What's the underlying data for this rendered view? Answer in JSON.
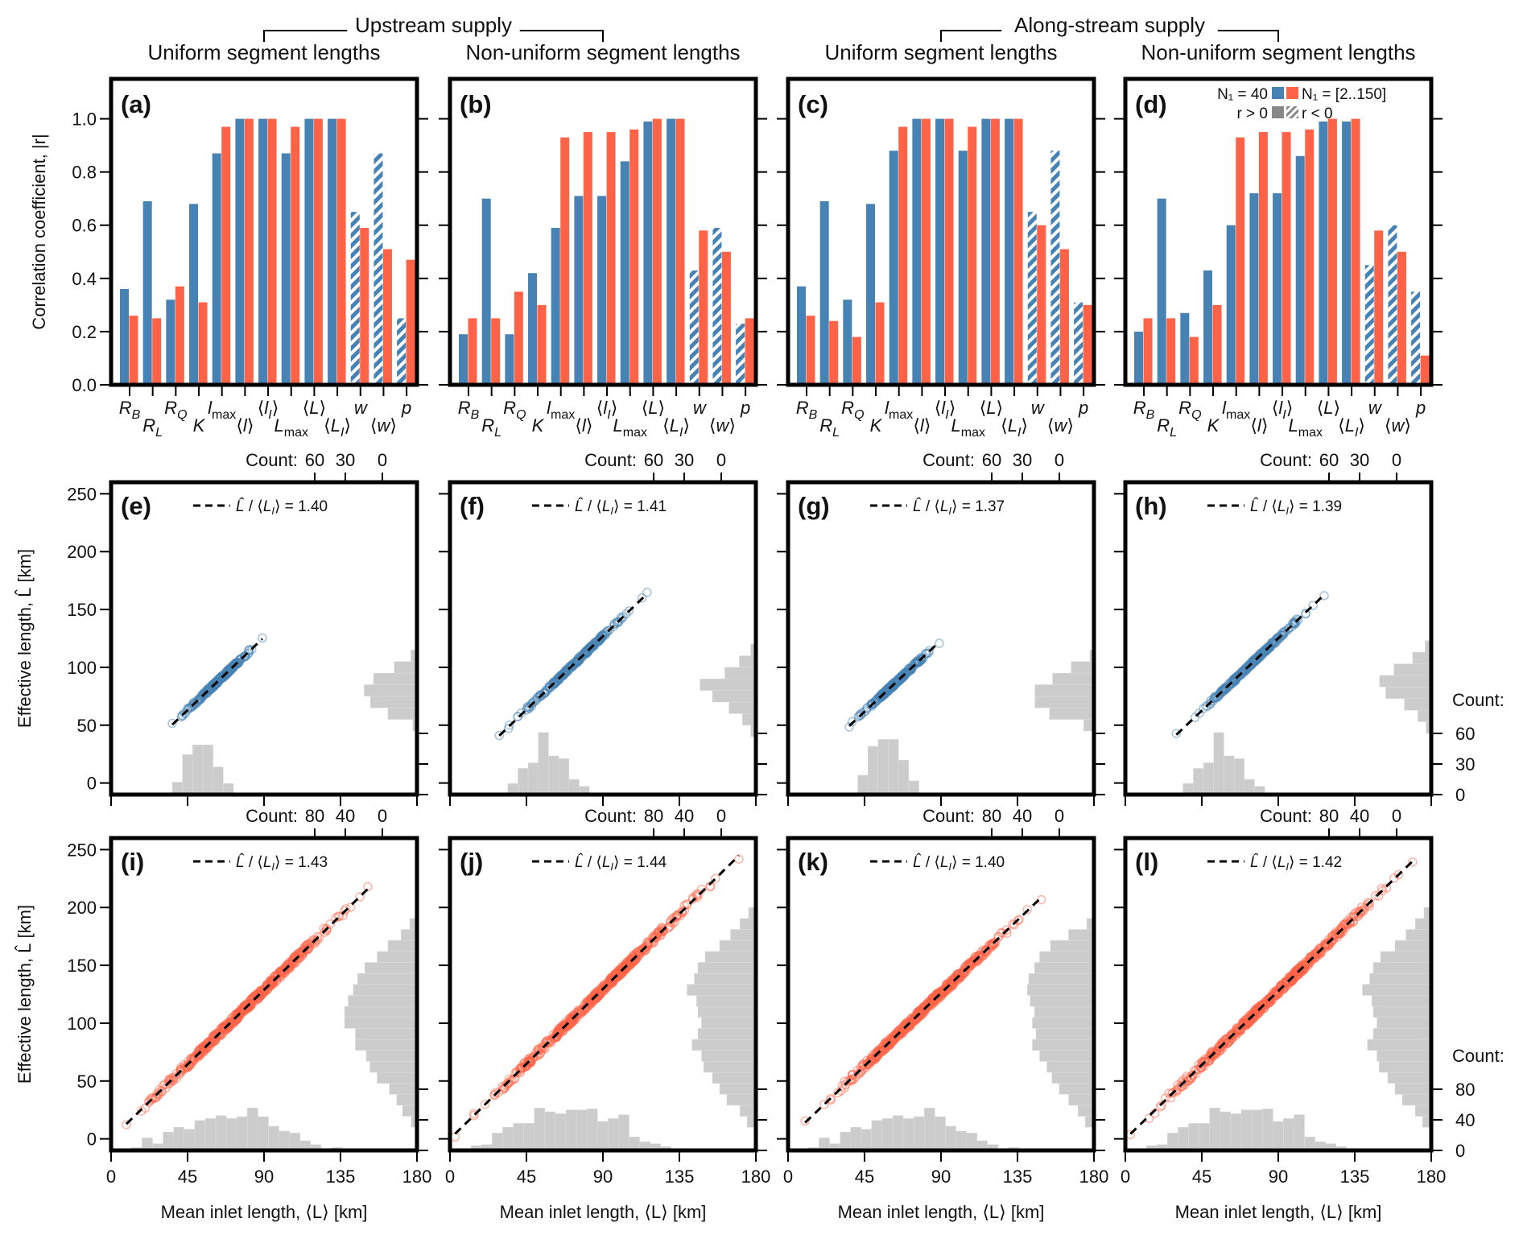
{
  "colors": {
    "blue": "#4682b4",
    "red": "#ff6347",
    "hist": "#cccccc",
    "frame": "#000000"
  },
  "group_headers": [
    {
      "label": "Upstream supply",
      "columns": [
        0,
        1
      ]
    },
    {
      "label": "Along-stream supply",
      "columns": [
        2,
        3
      ]
    }
  ],
  "column_titles": [
    "Uniform segment lengths",
    "Non-uniform segment lengths",
    "Uniform segment lengths",
    "Non-uniform segment lengths"
  ],
  "legend": {
    "series1": "N₁ = 40",
    "series2": "N₁ = [2..150]",
    "pos": "r > 0",
    "neg": "r < 0"
  },
  "chart_data": [
    {
      "type": "bar",
      "row": "correlation",
      "ylabel": "Correlation coefficient, |r|",
      "ylim": [
        0,
        1.15
      ],
      "yticks": [
        "0.0",
        "0.2",
        "0.4",
        "0.6",
        "0.8",
        "1.0"
      ],
      "categories": [
        "R_B",
        "R_L",
        "R_Q",
        "K",
        "l_max",
        "⟨l⟩",
        "⟨l_I⟩",
        "L_max",
        "⟨L⟩",
        "⟨L_I⟩",
        "w",
        "⟨w⟩",
        "p"
      ],
      "panels": [
        {
          "label": "(a)",
          "series": [
            {
              "name": "N₁ = 40",
              "values": [
                0.36,
                0.69,
                0.32,
                0.68,
                0.87,
                1.0,
                1.0,
                0.87,
                1.0,
                1.0,
                0.65,
                0.87,
                0.25
              ],
              "negative": [
                false,
                false,
                false,
                false,
                false,
                false,
                false,
                false,
                false,
                false,
                true,
                true,
                true
              ]
            },
            {
              "name": "N₁ = [2..150]",
              "values": [
                0.26,
                0.25,
                0.37,
                0.31,
                0.97,
                1.0,
                1.0,
                0.97,
                1.0,
                1.0,
                0.59,
                0.51,
                0.47
              ],
              "negative": [
                false,
                false,
                false,
                false,
                false,
                false,
                false,
                false,
                false,
                false,
                false,
                false,
                false
              ]
            }
          ]
        },
        {
          "label": "(b)",
          "series": [
            {
              "name": "N₁ = 40",
              "values": [
                0.19,
                0.7,
                0.19,
                0.42,
                0.59,
                0.71,
                0.71,
                0.84,
                0.99,
                1.0,
                0.43,
                0.59,
                0.23
              ],
              "negative": [
                false,
                false,
                false,
                false,
                false,
                false,
                false,
                false,
                false,
                false,
                true,
                true,
                true
              ]
            },
            {
              "name": "N₁ = [2..150]",
              "values": [
                0.25,
                0.25,
                0.35,
                0.3,
                0.93,
                0.95,
                0.95,
                0.96,
                1.0,
                1.0,
                0.58,
                0.5,
                0.25
              ],
              "negative": [
                false,
                false,
                false,
                false,
                false,
                false,
                false,
                false,
                false,
                false,
                false,
                false,
                false
              ]
            }
          ]
        },
        {
          "label": "(c)",
          "series": [
            {
              "name": "N₁ = 40",
              "values": [
                0.37,
                0.69,
                0.32,
                0.68,
                0.88,
                1.0,
                1.0,
                0.88,
                1.0,
                1.0,
                0.65,
                0.88,
                0.31
              ],
              "negative": [
                false,
                false,
                false,
                false,
                false,
                false,
                false,
                false,
                false,
                false,
                true,
                true,
                true
              ]
            },
            {
              "name": "N₁ = [2..150]",
              "values": [
                0.26,
                0.24,
                0.18,
                0.31,
                0.97,
                1.0,
                1.0,
                0.97,
                1.0,
                1.0,
                0.6,
                0.51,
                0.3
              ],
              "negative": [
                false,
                false,
                false,
                false,
                false,
                false,
                false,
                false,
                false,
                false,
                false,
                false,
                false
              ]
            }
          ]
        },
        {
          "label": "(d)",
          "series": [
            {
              "name": "N₁ = 40",
              "values": [
                0.2,
                0.7,
                0.27,
                0.43,
                0.6,
                0.72,
                0.72,
                0.86,
                0.99,
                0.99,
                0.45,
                0.6,
                0.35
              ],
              "negative": [
                false,
                false,
                false,
                false,
                false,
                false,
                false,
                false,
                false,
                false,
                true,
                true,
                true
              ]
            },
            {
              "name": "N₁ = [2..150]",
              "values": [
                0.25,
                0.25,
                0.18,
                0.3,
                0.93,
                0.95,
                0.95,
                0.96,
                1.0,
                1.0,
                0.58,
                0.5,
                0.11
              ],
              "negative": [
                false,
                false,
                false,
                false,
                false,
                false,
                false,
                false,
                false,
                false,
                false,
                false,
                false
              ]
            }
          ]
        }
      ]
    },
    {
      "type": "scatter",
      "row": "uniform_N",
      "ylabel": "Effective length, L̂ [km]",
      "xlim": [
        0,
        180
      ],
      "ylim": [
        -10,
        260
      ],
      "yticks": [
        0,
        50,
        100,
        150,
        200,
        250
      ],
      "xticks": [
        0,
        45,
        90,
        135,
        180
      ],
      "count_top_ticks": [
        "60",
        "30",
        "0"
      ],
      "count_top_max": 70,
      "count_right_ticks": [
        "60",
        "30",
        "0"
      ],
      "count_label": "Count:",
      "color": "blue",
      "panels": [
        {
          "label": "(e)",
          "ratio": "1.40",
          "x_range": [
            36,
            89
          ],
          "xhist": {
            "start": 36,
            "width": 6,
            "counts": [
              9,
              29,
              36,
              36,
              20,
              8
            ]
          },
          "yhist": {
            "start": 45,
            "width": 10,
            "counts": [
              4,
              28,
              45,
              51,
              42,
              22,
              6
            ]
          }
        },
        {
          "label": "(f)",
          "ratio": "1.41",
          "x_range": [
            29,
            116
          ],
          "xhist": {
            "start": 34,
            "width": 6,
            "counts": [
              8,
              19,
              23,
              45,
              28,
              26,
              11,
              6
            ]
          },
          "yhist": {
            "start": 40,
            "width": 10,
            "counts": [
              5,
              13,
              26,
              42,
              54,
              30,
              16,
              5
            ]
          }
        },
        {
          "label": "(g)",
          "ratio": "1.37",
          "x_range": [
            36,
            89
          ],
          "xhist": {
            "start": 41,
            "width": 6,
            "counts": [
              14,
              35,
              40,
              40,
              25,
              10
            ]
          },
          "yhist": {
            "start": 45,
            "width": 10,
            "counts": [
              10,
              43,
              57,
              57,
              40,
              22,
              4
            ]
          }
        },
        {
          "label": "(h)",
          "ratio": "1.39",
          "x_range": [
            30,
            117
          ],
          "xhist": {
            "start": 34,
            "width": 6,
            "counts": [
              8,
              19,
              23,
              45,
              28,
              26,
              11,
              6
            ]
          },
          "yhist": {
            "start": 43,
            "width": 10,
            "counts": [
              5,
              13,
              26,
              44,
              50,
              36,
              18,
              6
            ]
          }
        }
      ]
    },
    {
      "type": "scatter",
      "row": "varying_N",
      "ylabel": "Effective length, L̂ [km]",
      "xlabel": "Mean inlet length, ⟨L_I⟩ [km]",
      "xlim": [
        0,
        180
      ],
      "ylim": [
        -10,
        260
      ],
      "yticks": [
        0,
        50,
        100,
        150,
        200,
        250
      ],
      "xticks": [
        0,
        45,
        90,
        135,
        180
      ],
      "count_top_ticks": [
        "80",
        "40",
        "0"
      ],
      "count_top_max": 100,
      "count_right_ticks": [
        "80",
        "40",
        "0"
      ],
      "count_label": "Count:",
      "color": "red",
      "panels": [
        {
          "label": "(i)",
          "ratio": "1.43",
          "x_range": [
            9,
            151
          ],
          "xhist": {
            "start": 12,
            "width": 6.2,
            "counts": [
              3,
              13,
              7,
              19,
              24,
              22,
              31,
              33,
              36,
              33,
              35,
              44,
              35,
              25,
              20,
              18,
              10,
              6,
              2,
              3
            ]
          },
          "yhist": {
            "start": 10,
            "width": 9.5,
            "counts": [
              8,
              20,
              28,
              38,
              55,
              65,
              70,
              85,
              85,
              100,
              100,
              95,
              88,
              82,
              72,
              55,
              40,
              22,
              10
            ]
          }
        },
        {
          "label": "(j)",
          "ratio": "1.44",
          "x_range": [
            3,
            170
          ],
          "xhist": {
            "start": 0,
            "width": 6.2,
            "counts": [
              1,
              1,
              5,
              6,
              18,
              24,
              28,
              28,
              44,
              40,
              38,
              42,
              42,
              43,
              30,
              33,
              37,
              14,
              9,
              7,
              4,
              2,
              1
            ]
          },
          "yhist": {
            "start": 10,
            "width": 9.5,
            "counts": [
              12,
              22,
              40,
              50,
              60,
              72,
              75,
              88,
              80,
              75,
              80,
              82,
              95,
              85,
              80,
              70,
              50,
              35,
              22,
              10
            ]
          }
        },
        {
          "label": "(k)",
          "ratio": "1.40",
          "x_range": [
            10,
            149
          ],
          "xhist": {
            "start": 12,
            "width": 6.2,
            "counts": [
              3,
              13,
              7,
              19,
              24,
              22,
              31,
              33,
              36,
              33,
              35,
              44,
              35,
              25,
              20,
              18,
              10,
              6,
              2,
              3
            ]
          },
          "yhist": {
            "start": 10,
            "width": 9.5,
            "counts": [
              12,
              22,
              35,
              48,
              58,
              65,
              75,
              85,
              80,
              85,
              82,
              88,
              92,
              90,
              82,
              75,
              60,
              35,
              10
            ]
          }
        },
        {
          "label": "(l)",
          "ratio": "1.42",
          "x_range": [
            3,
            169
          ],
          "xhist": {
            "start": 0,
            "width": 6.2,
            "counts": [
              1,
              1,
              5,
              6,
              18,
              24,
              28,
              28,
              44,
              40,
              38,
              42,
              42,
              43,
              30,
              33,
              37,
              14,
              9,
              7,
              4,
              2,
              1
            ]
          },
          "yhist": {
            "start": 10,
            "width": 9.5,
            "counts": [
              12,
              22,
              40,
              50,
              60,
              72,
              75,
              88,
              80,
              75,
              80,
              82,
              95,
              85,
              80,
              70,
              50,
              35,
              22,
              10
            ]
          }
        }
      ]
    }
  ]
}
